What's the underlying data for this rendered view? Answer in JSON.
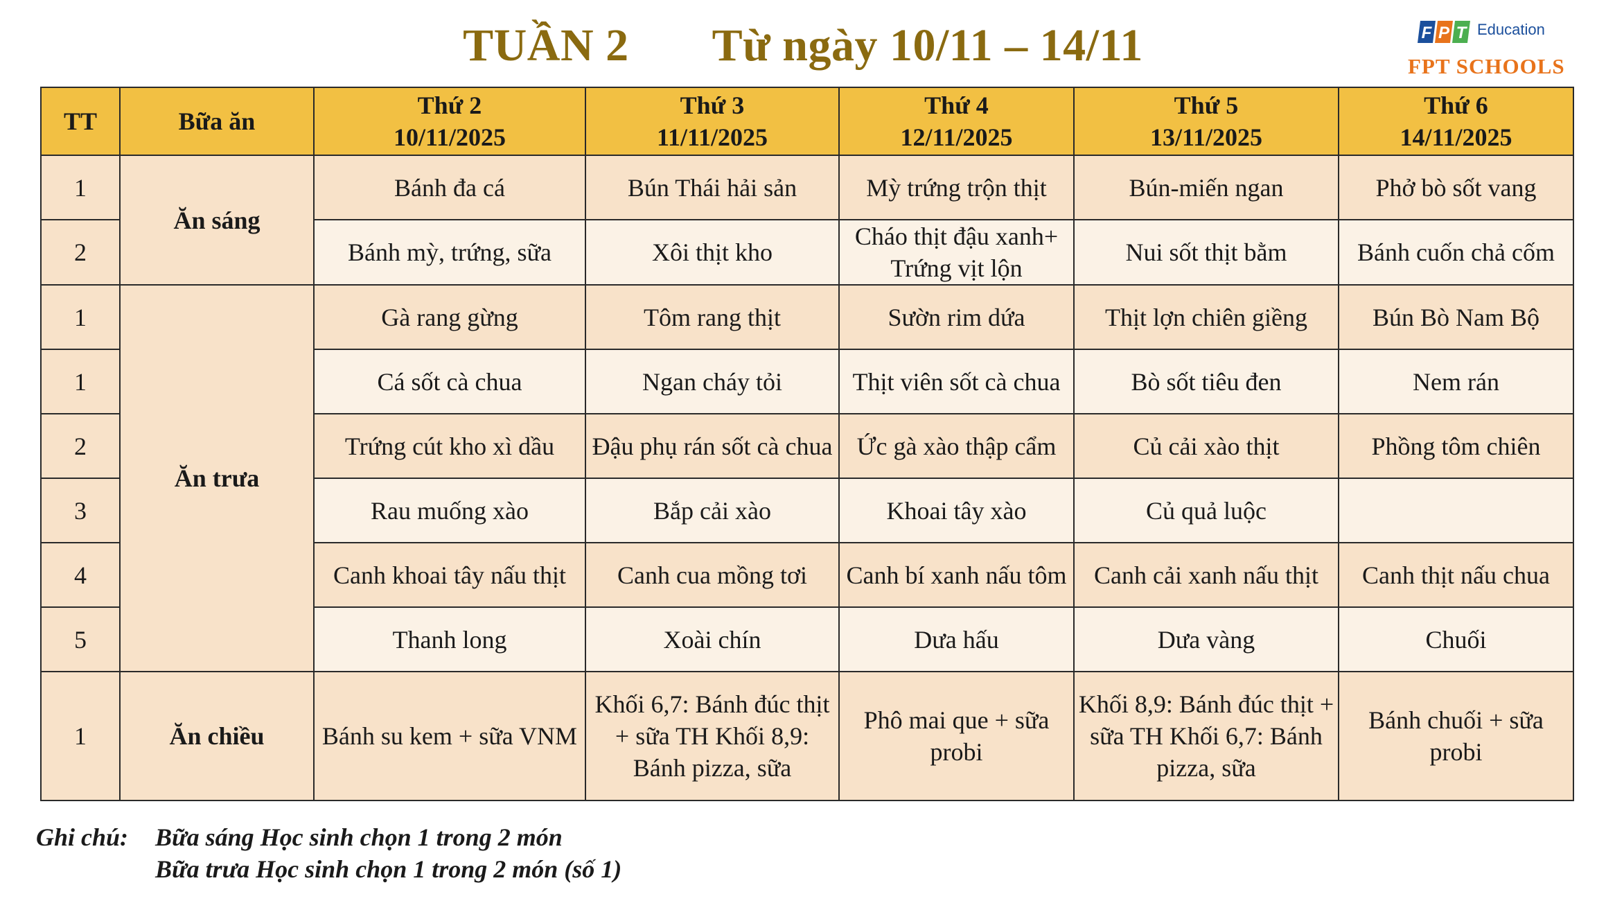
{
  "title": {
    "week": "TUẦN 2",
    "range": "Từ ngày 10/11 – 14/11"
  },
  "logo": {
    "mark": "FPT",
    "education": "Education",
    "schools": "FPT SCHOOLS",
    "colors": [
      "#1b4f9c",
      "#e8731b",
      "#4caf50"
    ]
  },
  "colors": {
    "header": "#f2c043",
    "row_dark": "#f8e2c9",
    "row_light": "#fbf2e6",
    "title": "#8a6a10"
  },
  "table": {
    "headers": {
      "tt": "TT",
      "meal": "Bữa ăn",
      "days": [
        {
          "name": "Thứ 2",
          "date": "10/11/2025"
        },
        {
          "name": "Thứ 3",
          "date": "11/11/2025"
        },
        {
          "name": "Thứ 4",
          "date": "12/11/2025"
        },
        {
          "name": "Thứ 5",
          "date": "13/11/2025"
        },
        {
          "name": "Thứ 6",
          "date": "14/11/2025"
        }
      ]
    },
    "meals": {
      "breakfast": "Ăn sáng",
      "lunch": "Ăn trưa",
      "afternoon": "Ăn chiều"
    },
    "rows": [
      {
        "tt": "1",
        "dishes": [
          "Bánh đa cá",
          "Bún Thái hải sản",
          "Mỳ trứng trộn thịt",
          "Bún-miến ngan",
          "Phở bò sốt vang"
        ]
      },
      {
        "tt": "2",
        "dishes": [
          "Bánh mỳ, trứng, sữa",
          "Xôi thịt kho",
          "Cháo thịt đậu xanh+ Trứng vịt lộn",
          "Nui sốt thịt bằm",
          "Bánh cuốn chả cốm"
        ]
      },
      {
        "tt": "1",
        "dishes": [
          "Gà rang gừng",
          "Tôm rang thịt",
          "Sườn rim dứa",
          "Thịt lợn chiên giềng",
          "Bún Bò Nam Bộ"
        ]
      },
      {
        "tt": "1",
        "dishes": [
          "Cá sốt cà chua",
          "Ngan cháy tỏi",
          "Thịt viên sốt cà chua",
          "Bò sốt tiêu đen",
          "Nem rán"
        ]
      },
      {
        "tt": "2",
        "dishes": [
          "Trứng cút kho xì dầu",
          "Đậu phụ rán sốt cà chua",
          "Ức gà xào thập cẩm",
          "Củ cải xào thịt",
          "Phồng tôm chiên"
        ]
      },
      {
        "tt": "3",
        "dishes": [
          "Rau muống xào",
          "Bắp cải xào",
          "Khoai tây xào",
          "Củ quả luộc",
          ""
        ]
      },
      {
        "tt": "4",
        "dishes": [
          "Canh khoai tây nấu thịt",
          "Canh cua mồng tơi",
          "Canh bí xanh nấu tôm",
          "Canh cải xanh nấu thịt",
          "Canh thịt nấu chua"
        ]
      },
      {
        "tt": "5",
        "dishes": [
          "Thanh long",
          "Xoài chín",
          "Dưa hấu",
          "Dưa vàng",
          "Chuối"
        ]
      },
      {
        "tt": "1",
        "dishes": [
          "Bánh su kem + sữa VNM",
          "Khối 6,7: Bánh đúc thịt + sữa TH Khối 8,9: Bánh pizza, sữa",
          "Phô mai que + sữa probi",
          "Khối 8,9: Bánh đúc thịt + sữa TH Khối 6,7: Bánh pizza, sữa",
          "Bánh chuối + sữa probi"
        ]
      }
    ]
  },
  "notes": {
    "label": "Ghi chú:",
    "line1": "Bữa sáng Học sinh chọn 1 trong 2 món",
    "line2": "Bữa trưa Học sinh chọn 1 trong 2 món (số 1)"
  }
}
